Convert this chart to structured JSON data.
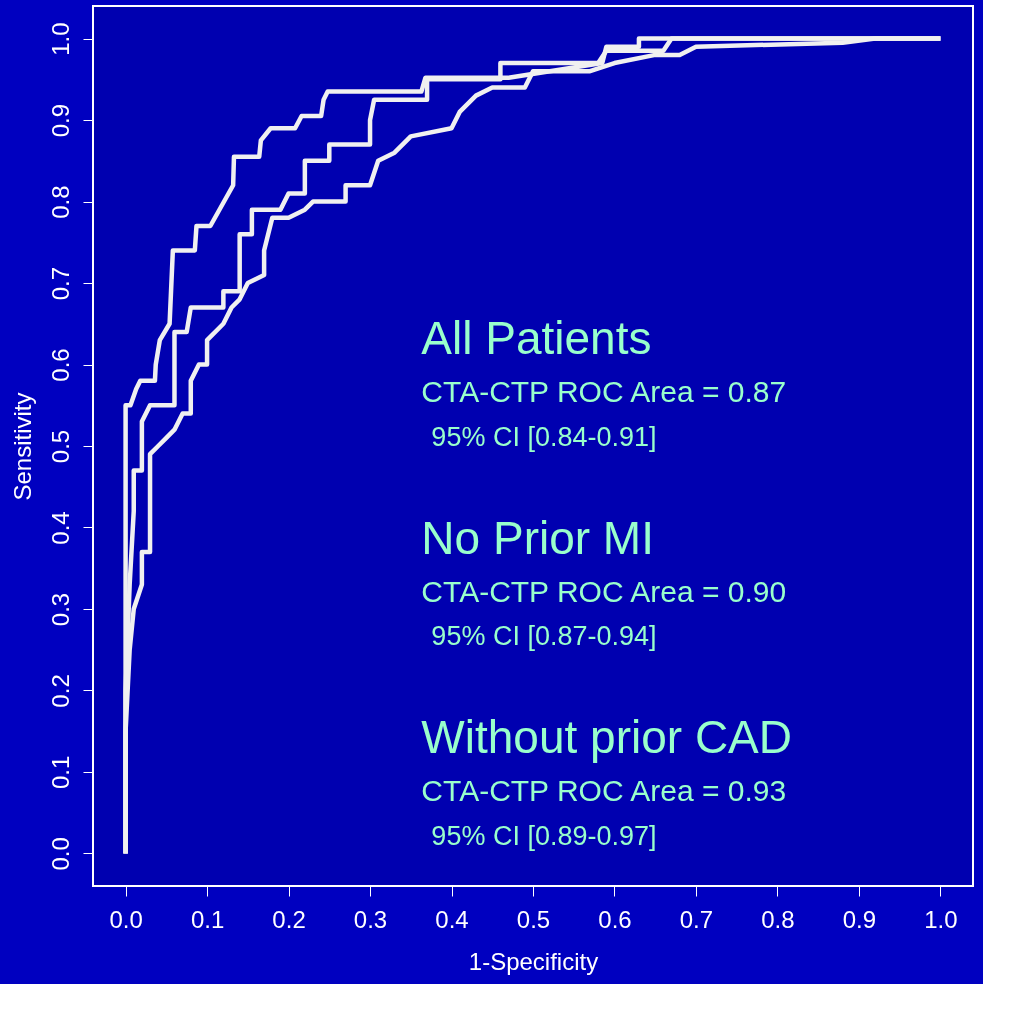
{
  "chart_data": {
    "type": "line",
    "xlabel": "1-Specificity",
    "ylabel": "Sensitivity",
    "xlim": [
      -0.04,
      1.04
    ],
    "ylim": [
      -0.04,
      1.04
    ],
    "xticks": [
      {
        "value": 0,
        "label": "0.0"
      },
      0.1,
      0.2,
      0.3,
      0.4,
      0.5,
      0.6,
      0.7,
      0.8,
      0.9,
      {
        "value": 1,
        "label": "1.0"
      }
    ],
    "yticks": [
      {
        "value": 0,
        "label": "0.0"
      },
      0.1,
      0.2,
      0.3,
      0.4,
      0.5,
      0.6,
      0.7,
      0.8,
      0.9,
      {
        "value": 1,
        "label": "1.0"
      }
    ],
    "grid": false,
    "marker": "none",
    "line_style": "solid",
    "series": [
      {
        "color": "#f0f0f0",
        "x": [
          0,
          0,
          0.006,
          0.013,
          0.018,
          0.036,
          0.037,
          0.042,
          0.054,
          0.058,
          0.085,
          0.087,
          0.104,
          0.132,
          0.133,
          0.164,
          0.166,
          0.178,
          0.208,
          0.216,
          0.24,
          0.243,
          0.248,
          0.363,
          0.368,
          0.47,
          0.585,
          0.59,
          0.63,
          0.63,
          1
        ],
        "values": [
          0,
          0.55,
          0.55,
          0.57,
          0.58,
          0.58,
          0.6,
          0.63,
          0.65,
          0.74,
          0.74,
          0.77,
          0.77,
          0.82,
          0.855,
          0.855,
          0.875,
          0.89,
          0.89,
          0.905,
          0.905,
          0.925,
          0.935,
          0.935,
          0.952,
          0.952,
          0.97,
          0.99,
          0.99,
          1,
          1
        ]
      },
      {
        "color": "#f0f0f0",
        "x": [
          0,
          0,
          0.005,
          0.01,
          0.01,
          0.02,
          0.02,
          0.03,
          0.06,
          0.06,
          0.075,
          0.08,
          0.12,
          0.12,
          0.14,
          0.14,
          0.155,
          0.155,
          0.19,
          0.2,
          0.22,
          0.22,
          0.25,
          0.25,
          0.3,
          0.3,
          0.305,
          0.37,
          0.37,
          0.46,
          0.46,
          0.58,
          0.59,
          0.66,
          0.67,
          1
        ],
        "values": [
          0,
          0.2,
          0.33,
          0.42,
          0.47,
          0.47,
          0.53,
          0.55,
          0.55,
          0.64,
          0.64,
          0.67,
          0.67,
          0.69,
          0.69,
          0.76,
          0.76,
          0.79,
          0.79,
          0.81,
          0.81,
          0.85,
          0.85,
          0.87,
          0.87,
          0.9,
          0.925,
          0.925,
          0.95,
          0.95,
          0.97,
          0.97,
          0.985,
          0.985,
          1,
          1
        ]
      },
      {
        "color": "#f0f0f0",
        "x": [
          0,
          0,
          0.005,
          0.01,
          0.02,
          0.02,
          0.03,
          0.03,
          0.04,
          0.05,
          0.06,
          0.07,
          0.08,
          0.08,
          0.09,
          0.1,
          0.1,
          0.12,
          0.13,
          0.14,
          0.15,
          0.17,
          0.17,
          0.18,
          0.2,
          0.22,
          0.23,
          0.27,
          0.27,
          0.3,
          0.31,
          0.33,
          0.35,
          0.4,
          0.41,
          0.43,
          0.45,
          0.49,
          0.5,
          0.57,
          0.6,
          0.65,
          0.68,
          0.7,
          0.88,
          0.92,
          1
        ],
        "values": [
          0,
          0.15,
          0.25,
          0.3,
          0.33,
          0.37,
          0.37,
          0.49,
          0.5,
          0.51,
          0.52,
          0.54,
          0.54,
          0.58,
          0.6,
          0.6,
          0.63,
          0.65,
          0.67,
          0.68,
          0.7,
          0.71,
          0.74,
          0.78,
          0.78,
          0.79,
          0.8,
          0.8,
          0.82,
          0.82,
          0.85,
          0.86,
          0.88,
          0.89,
          0.91,
          0.93,
          0.94,
          0.94,
          0.96,
          0.96,
          0.97,
          0.98,
          0.98,
          0.99,
          0.995,
          1,
          1
        ]
      }
    ],
    "annotations": [
      "All Patients",
      "CTA-CTP ROC Area = 0.87",
      "95% CI [0.84-0.91]",
      "No Prior MI",
      "CTA-CTP ROC Area = 0.90",
      "95% CI [0.87-0.94]",
      "Without prior CAD",
      "CTA-CTP ROC Area = 0.93",
      "95% CI [0.89-0.97]"
    ]
  }
}
